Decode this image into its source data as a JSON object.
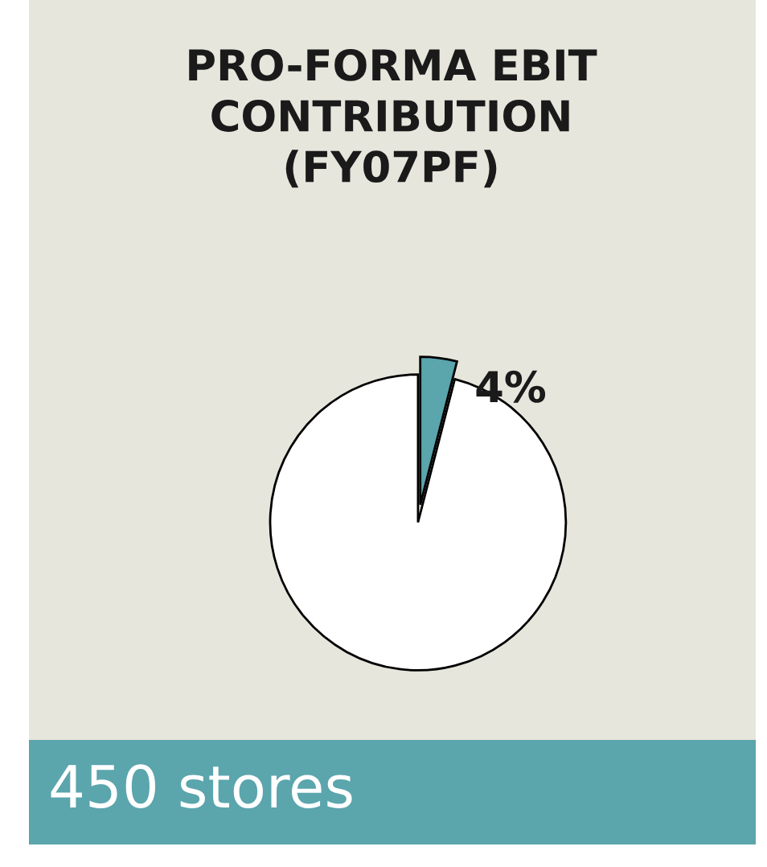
{
  "chart_data": {
    "type": "pie",
    "title": "PRO-FORMA EBIT\nCONTRIBUTION\n(FY07PF)",
    "categories": [
      null,
      null
    ],
    "values": [
      4,
      96
    ],
    "colors": [
      "#5ba5ad",
      "#ffffff"
    ],
    "value_labels": [
      "4%",
      null
    ],
    "annotations": [
      "450 stores"
    ]
  }
}
